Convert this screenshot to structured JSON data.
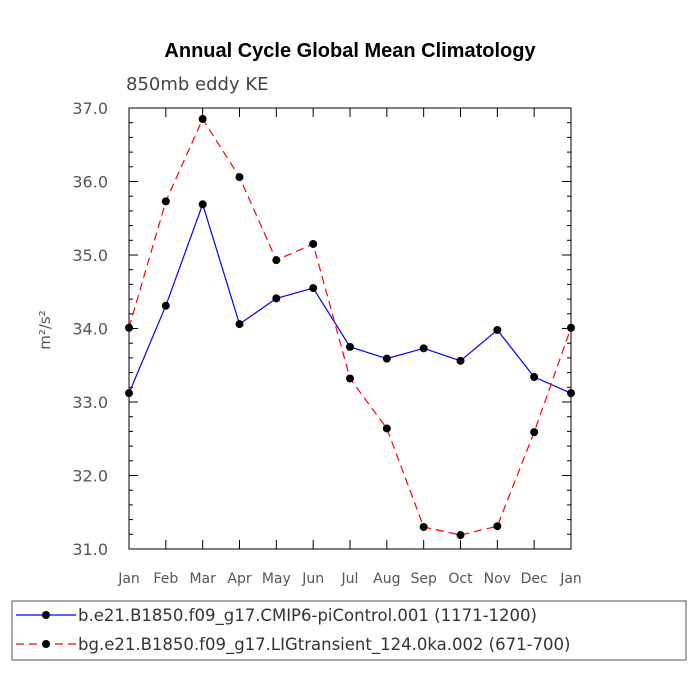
{
  "chart_data": {
    "type": "line",
    "title": "Annual Cycle Global Mean Climatology",
    "subtitle": "850mb eddy KE",
    "ylabel": "m²/s²",
    "xlabel": "",
    "ylim": [
      31.0,
      37.0
    ],
    "yticks": [
      "31.0",
      "32.0",
      "33.0",
      "34.0",
      "35.0",
      "36.0",
      "37.0"
    ],
    "categories": [
      "Jan",
      "Feb",
      "Mar",
      "Apr",
      "May",
      "Jun",
      "Jul",
      "Aug",
      "Sep",
      "Oct",
      "Nov",
      "Dec",
      "Jan"
    ],
    "grid": false,
    "legend_position": "bottom",
    "series": [
      {
        "name": "b.e21.B1850.f09_g17.CMIP6-piControl.001 (1171-1200)",
        "color": "#0000ff",
        "line_style": "solid",
        "values": [
          33.12,
          34.31,
          35.69,
          34.06,
          34.41,
          34.55,
          33.75,
          33.59,
          33.73,
          33.56,
          33.98,
          33.34,
          33.12
        ]
      },
      {
        "name": "bg.e21.B1850.f09_g17.LIGtransient_124.0ka.002 (671-700)",
        "color": "#ff0000",
        "line_style": "dashed",
        "values": [
          34.01,
          35.73,
          36.85,
          36.06,
          34.93,
          35.15,
          33.32,
          32.64,
          31.3,
          31.19,
          31.31,
          32.59,
          34.01
        ]
      }
    ]
  }
}
